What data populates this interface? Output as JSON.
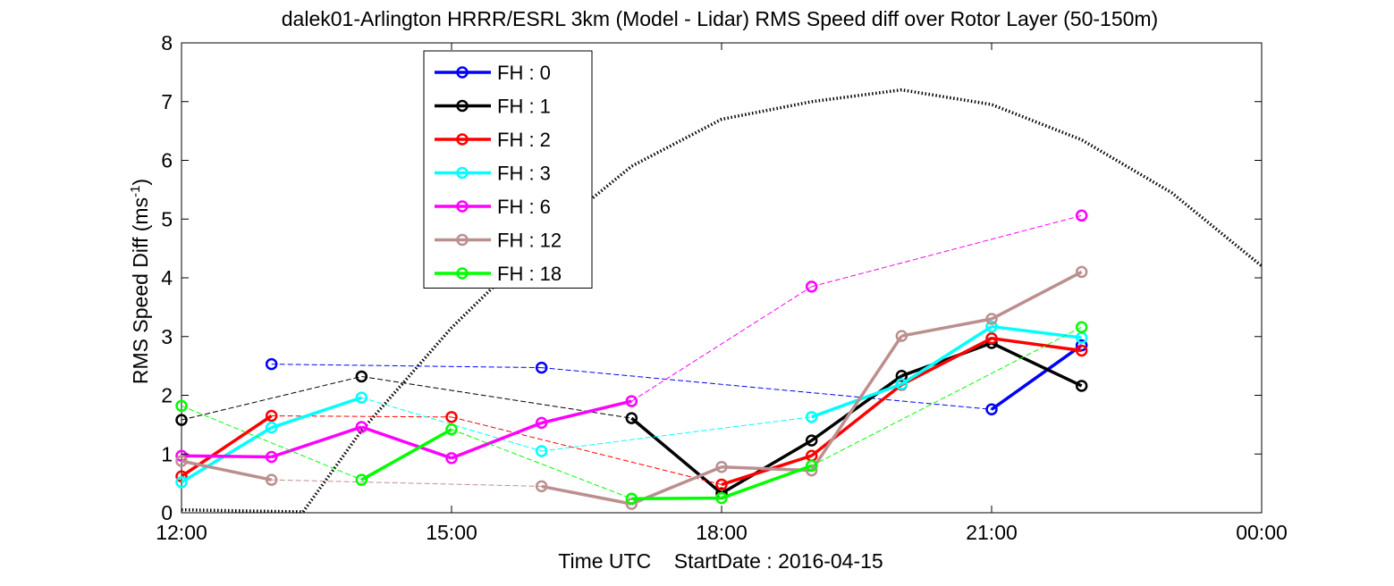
{
  "chart_data": {
    "type": "line",
    "title": "dalek01-Arlington HRRR/ESRL 3km (Model - Lidar) RMS Speed diff over Rotor Layer (50-150m)",
    "xlabel": "Time UTC    StartDate : 2016-04-15",
    "ylabel_main": "RMS Speed Diff (ms",
    "ylabel_sup": "-1",
    "ylabel_close": ")",
    "xlim": [
      12,
      24
    ],
    "ylim": [
      0,
      8
    ],
    "x_ticks": [
      {
        "value": 12,
        "label": "12:00"
      },
      {
        "value": 15,
        "label": "15:00"
      },
      {
        "value": 18,
        "label": "18:00"
      },
      {
        "value": 21,
        "label": "21:00"
      },
      {
        "value": 24,
        "label": "00:00"
      }
    ],
    "y_ticks": [
      {
        "value": 0,
        "label": "0"
      },
      {
        "value": 1,
        "label": "1"
      },
      {
        "value": 2,
        "label": "2"
      },
      {
        "value": 3,
        "label": "3"
      },
      {
        "value": 4,
        "label": "4"
      },
      {
        "value": 5,
        "label": "5"
      },
      {
        "value": 6,
        "label": "6"
      },
      {
        "value": 7,
        "label": "7"
      },
      {
        "value": 8,
        "label": "8"
      }
    ],
    "grid": false,
    "legend_position": "top-left",
    "series": [
      {
        "name": "FH : 0",
        "color": "#0000ff",
        "points": [
          [
            13,
            2.53
          ],
          [
            16,
            2.47
          ],
          [
            21,
            1.76
          ],
          [
            22,
            2.85
          ]
        ]
      },
      {
        "name": "FH : 1",
        "color": "#000000",
        "points": [
          [
            12,
            1.58
          ],
          [
            14,
            2.32
          ],
          [
            17,
            1.61
          ],
          [
            18,
            0.33
          ],
          [
            19,
            1.23
          ],
          [
            20,
            2.33
          ],
          [
            21,
            2.89
          ],
          [
            22,
            2.16
          ]
        ]
      },
      {
        "name": "FH : 2",
        "color": "#ff0000",
        "points": [
          [
            12,
            0.62
          ],
          [
            13,
            1.65
          ],
          [
            15,
            1.63
          ],
          [
            18,
            0.48
          ],
          [
            19,
            0.97
          ],
          [
            20,
            2.18
          ],
          [
            21,
            2.97
          ],
          [
            22,
            2.76
          ]
        ]
      },
      {
        "name": "FH : 3",
        "color": "#00ffff",
        "points": [
          [
            12,
            0.52
          ],
          [
            13,
            1.45
          ],
          [
            14,
            1.96
          ],
          [
            16,
            1.05
          ],
          [
            19,
            1.63
          ],
          [
            20,
            2.19
          ],
          [
            21,
            3.17
          ],
          [
            22,
            2.98
          ]
        ]
      },
      {
        "name": "FH : 6",
        "color": "#ff00ff",
        "points": [
          [
            12,
            0.97
          ],
          [
            13,
            0.95
          ],
          [
            14,
            1.46
          ],
          [
            15,
            0.93
          ],
          [
            16,
            1.53
          ],
          [
            17,
            1.9
          ],
          [
            19,
            3.85
          ],
          [
            22,
            5.06
          ]
        ]
      },
      {
        "name": "FH : 12",
        "color": "#bc8f8f",
        "points": [
          [
            12,
            0.88
          ],
          [
            13,
            0.56
          ],
          [
            16,
            0.45
          ],
          [
            17,
            0.15
          ],
          [
            18,
            0.78
          ],
          [
            19,
            0.72
          ],
          [
            20,
            3.01
          ],
          [
            21,
            3.3
          ],
          [
            22,
            4.1
          ]
        ]
      },
      {
        "name": "FH : 18",
        "color": "#00ff00",
        "points": [
          [
            12,
            1.82
          ],
          [
            14,
            0.56
          ],
          [
            15,
            1.42
          ],
          [
            17,
            0.24
          ],
          [
            18,
            0.25
          ],
          [
            19,
            0.8
          ],
          [
            22,
            3.16
          ]
        ]
      }
    ],
    "background_curve": {
      "style": "dotted",
      "color": "#000000",
      "points": [
        [
          12,
          0.05
        ],
        [
          13.35,
          0
        ],
        [
          14,
          1.4
        ],
        [
          15,
          3.15
        ],
        [
          16,
          4.65
        ],
        [
          17,
          5.9
        ],
        [
          18,
          6.7
        ],
        [
          19,
          7.0
        ],
        [
          20,
          7.2
        ],
        [
          21,
          6.95
        ],
        [
          22,
          6.35
        ],
        [
          23,
          5.45
        ],
        [
          24,
          4.2
        ]
      ]
    }
  }
}
